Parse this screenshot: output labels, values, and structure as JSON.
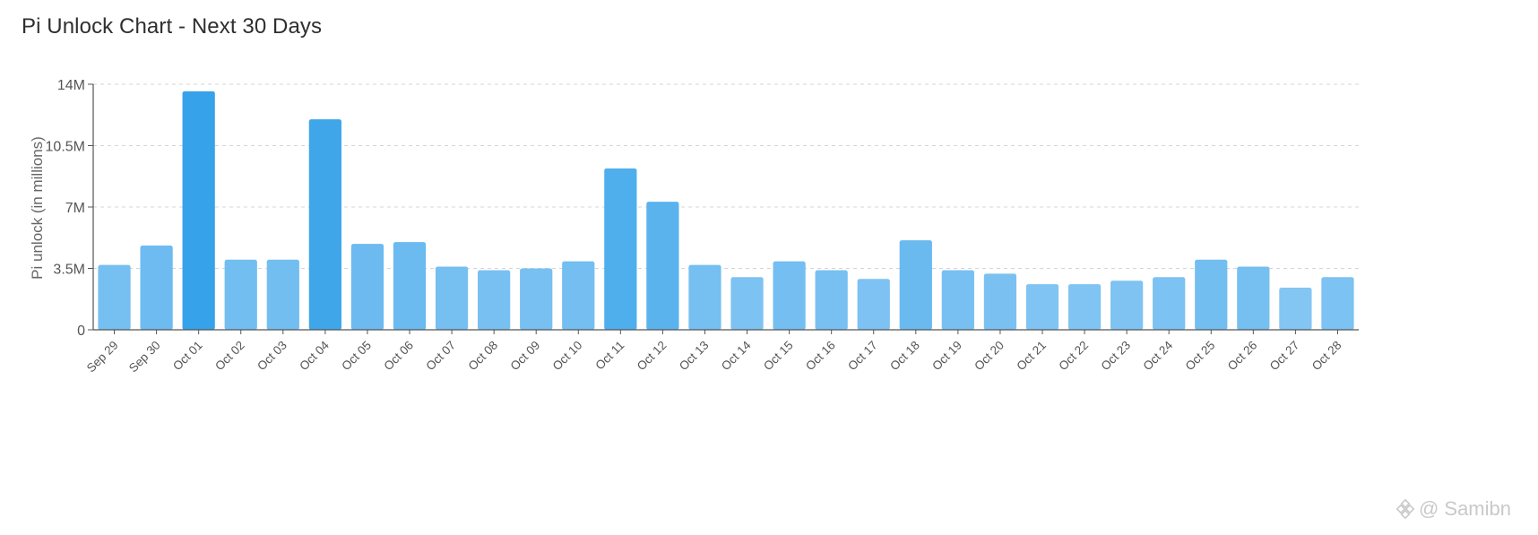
{
  "title": "Pi Unlock Chart - Next 30 Days",
  "watermark": "@ Samibn",
  "colors": {
    "bar_low": "#83c5f3",
    "bar_high": "#36a2e9",
    "grid": "#d5d5d5",
    "axis": "#555555"
  },
  "chart_data": {
    "type": "bar",
    "title": "Pi Unlock Chart - Next 30 Days",
    "xlabel": "",
    "ylabel": "Pi unlock (in millions)",
    "ylim": [
      0,
      14
    ],
    "yticks": [
      0,
      3.5,
      7,
      10.5,
      14
    ],
    "ytick_labels": [
      "0",
      "3.5M",
      "7M",
      "10.5M",
      "14M"
    ],
    "grid": "horizontal dashed",
    "categories": [
      "Sep 29",
      "Sep 30",
      "Oct 01",
      "Oct 02",
      "Oct 03",
      "Oct 04",
      "Oct 05",
      "Oct 06",
      "Oct 07",
      "Oct 08",
      "Oct 09",
      "Oct 10",
      "Oct 11",
      "Oct 12",
      "Oct 13",
      "Oct 14",
      "Oct 15",
      "Oct 16",
      "Oct 17",
      "Oct 18",
      "Oct 19",
      "Oct 20",
      "Oct 21",
      "Oct 22",
      "Oct 23",
      "Oct 24",
      "Oct 25",
      "Oct 26",
      "Oct 27",
      "Oct 28"
    ],
    "values": [
      3.7,
      4.8,
      13.6,
      4.0,
      4.0,
      12.0,
      4.9,
      5.0,
      3.6,
      3.4,
      3.5,
      3.9,
      9.2,
      7.3,
      3.7,
      3.0,
      3.9,
      3.4,
      2.9,
      5.1,
      3.4,
      3.2,
      2.6,
      2.6,
      2.8,
      3.0,
      4.0,
      3.6,
      2.4,
      3.0
    ]
  }
}
